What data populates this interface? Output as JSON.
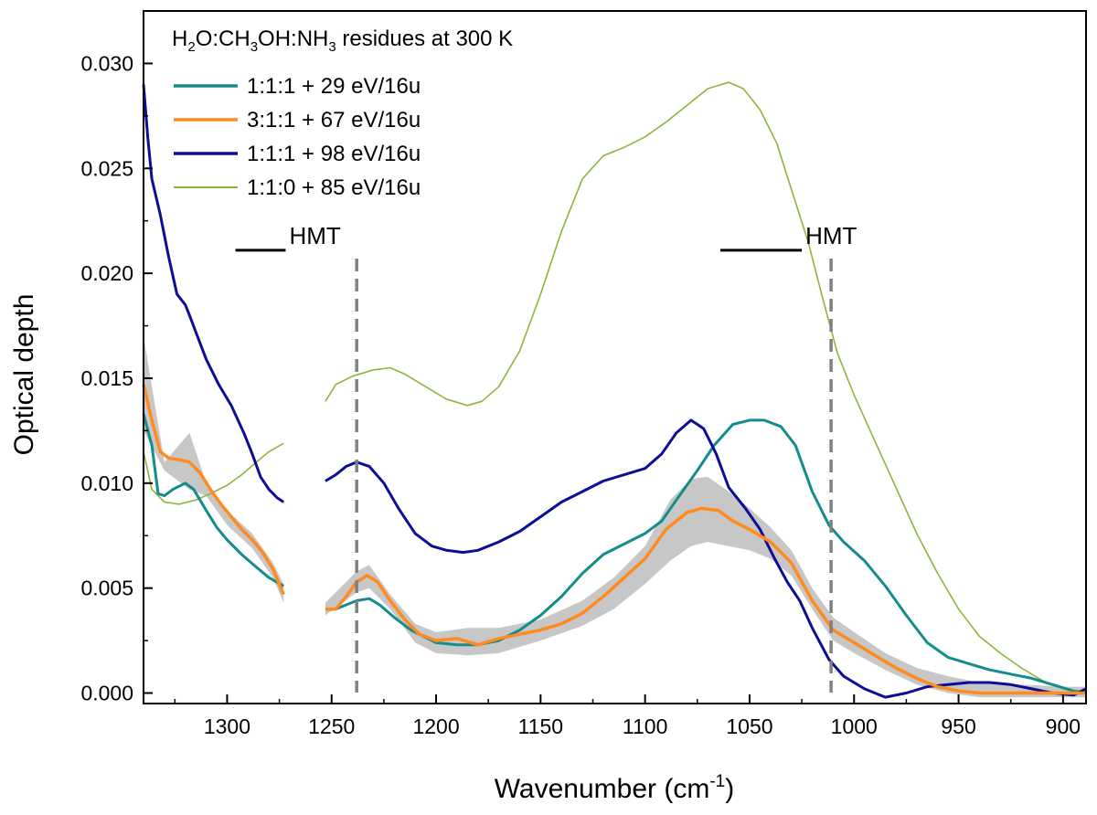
{
  "chart_data": {
    "type": "line",
    "title": "H2O:CH3OH:NH3 residues at 300 K",
    "title_parts": {
      "p1": "H",
      "s1": "2",
      "p2": "O:CH",
      "s2": "3",
      "p3": "OH:NH",
      "s3": "3",
      "p4": " residues at 300 K"
    },
    "xlabel": "Wavenumber (cm",
    "xlabel_sup": "-1",
    "xlabel_end": ")",
    "ylabel": "Optical depth",
    "xlim": [
      1340,
      889
    ],
    "ylim": [
      -0.0005,
      0.0325
    ],
    "x_reversed": true,
    "x_ticks": [
      1300,
      1250,
      1200,
      1150,
      1100,
      1050,
      1000,
      950,
      900
    ],
    "y_ticks": [
      "0.000",
      "0.005",
      "0.010",
      "0.015",
      "0.020",
      "0.025",
      "0.030"
    ],
    "legend_position": "top-left",
    "gap_range": [
      1273,
      1253
    ],
    "annotations": {
      "hmt_left": {
        "text": "HMT",
        "bar": [
          1296,
          1272
        ],
        "y": 0.0211,
        "marker_x": 1238
      },
      "hmt_right": {
        "text": "HMT",
        "bar": [
          1064,
          1025
        ],
        "y": 0.0211,
        "marker_x": 1011
      }
    },
    "series": [
      {
        "name": "1:1:1 + 29 eV/16u",
        "color": "#148c8c",
        "points": [
          [
            1340,
            0.0133
          ],
          [
            1336,
            0.0118
          ],
          [
            1333,
            0.0095
          ],
          [
            1330,
            0.0094
          ],
          [
            1326,
            0.0097
          ],
          [
            1320,
            0.01
          ],
          [
            1316,
            0.0097
          ],
          [
            1310,
            0.0087
          ],
          [
            1305,
            0.0079
          ],
          [
            1300,
            0.0073
          ],
          [
            1293,
            0.0066
          ],
          [
            1286,
            0.006
          ],
          [
            1280,
            0.0055
          ],
          [
            1273,
            0.0051
          ],
          null,
          [
            1253,
            0.004
          ],
          [
            1248,
            0.004
          ],
          [
            1243,
            0.0042
          ],
          [
            1238,
            0.0044
          ],
          [
            1232,
            0.0045
          ],
          [
            1227,
            0.0042
          ],
          [
            1220,
            0.0036
          ],
          [
            1212,
            0.003
          ],
          [
            1200,
            0.0024
          ],
          [
            1190,
            0.0023
          ],
          [
            1180,
            0.0023
          ],
          [
            1170,
            0.0025
          ],
          [
            1160,
            0.003
          ],
          [
            1150,
            0.0037
          ],
          [
            1140,
            0.0046
          ],
          [
            1130,
            0.0057
          ],
          [
            1120,
            0.0066
          ],
          [
            1110,
            0.0071
          ],
          [
            1100,
            0.0076
          ],
          [
            1092,
            0.0082
          ],
          [
            1085,
            0.0092
          ],
          [
            1075,
            0.0106
          ],
          [
            1067,
            0.0118
          ],
          [
            1058,
            0.0128
          ],
          [
            1050,
            0.013
          ],
          [
            1043,
            0.013
          ],
          [
            1035,
            0.0127
          ],
          [
            1028,
            0.0118
          ],
          [
            1020,
            0.0096
          ],
          [
            1012,
            0.008
          ],
          [
            1005,
            0.0072
          ],
          [
            995,
            0.0063
          ],
          [
            985,
            0.0051
          ],
          [
            975,
            0.0037
          ],
          [
            965,
            0.0024
          ],
          [
            955,
            0.0017
          ],
          [
            945,
            0.0014
          ],
          [
            935,
            0.0011
          ],
          [
            925,
            0.0009
          ],
          [
            915,
            0.0007
          ],
          [
            905,
            0.0004
          ],
          [
            895,
            0.0001
          ],
          [
            889,
            0.0
          ]
        ]
      },
      {
        "name": "3:1:1 + 67 eV/16u",
        "color": "#ff8a1e",
        "points": [
          [
            1340,
            0.0147
          ],
          [
            1336,
            0.013
          ],
          [
            1332,
            0.0115
          ],
          [
            1328,
            0.0112
          ],
          [
            1322,
            0.0111
          ],
          [
            1318,
            0.011
          ],
          [
            1313,
            0.0105
          ],
          [
            1308,
            0.0097
          ],
          [
            1303,
            0.009
          ],
          [
            1298,
            0.0084
          ],
          [
            1293,
            0.0078
          ],
          [
            1288,
            0.0073
          ],
          [
            1283,
            0.0067
          ],
          [
            1278,
            0.0059
          ],
          [
            1273,
            0.0047
          ],
          null,
          [
            1253,
            0.004
          ],
          [
            1248,
            0.004
          ],
          [
            1243,
            0.0046
          ],
          [
            1238,
            0.0053
          ],
          [
            1233,
            0.0056
          ],
          [
            1228,
            0.0053
          ],
          [
            1222,
            0.0044
          ],
          [
            1215,
            0.0035
          ],
          [
            1208,
            0.0028
          ],
          [
            1200,
            0.0025
          ],
          [
            1190,
            0.0026
          ],
          [
            1180,
            0.0023
          ],
          [
            1170,
            0.0026
          ],
          [
            1160,
            0.0028
          ],
          [
            1150,
            0.003
          ],
          [
            1140,
            0.0033
          ],
          [
            1130,
            0.0038
          ],
          [
            1120,
            0.0046
          ],
          [
            1110,
            0.0055
          ],
          [
            1100,
            0.0064
          ],
          [
            1090,
            0.0078
          ],
          [
            1080,
            0.0086
          ],
          [
            1073,
            0.0088
          ],
          [
            1065,
            0.0087
          ],
          [
            1058,
            0.0082
          ],
          [
            1050,
            0.0078
          ],
          [
            1040,
            0.0072
          ],
          [
            1030,
            0.0062
          ],
          [
            1020,
            0.0044
          ],
          [
            1010,
            0.003
          ],
          [
            1000,
            0.0024
          ],
          [
            990,
            0.0018
          ],
          [
            980,
            0.0012
          ],
          [
            970,
            0.0007
          ],
          [
            960,
            0.0003
          ],
          [
            950,
            0.0001
          ],
          [
            940,
            0.0
          ],
          [
            930,
            0.0
          ],
          [
            920,
            0.0
          ],
          [
            910,
            0.0
          ],
          [
            900,
            0.0
          ],
          [
            889,
            0.0
          ]
        ]
      },
      {
        "name": "1:1:1 + 98 eV/16u",
        "color": "#0d0d96",
        "points": [
          [
            1340,
            0.029
          ],
          [
            1338,
            0.0265
          ],
          [
            1336,
            0.0245
          ],
          [
            1332,
            0.0228
          ],
          [
            1328,
            0.0208
          ],
          [
            1324,
            0.019
          ],
          [
            1320,
            0.0185
          ],
          [
            1318,
            0.018
          ],
          [
            1315,
            0.0172
          ],
          [
            1310,
            0.0159
          ],
          [
            1304,
            0.0147
          ],
          [
            1298,
            0.0137
          ],
          [
            1292,
            0.0124
          ],
          [
            1288,
            0.0114
          ],
          [
            1284,
            0.0103
          ],
          [
            1280,
            0.0097
          ],
          [
            1276,
            0.0093
          ],
          [
            1273,
            0.0091
          ],
          null,
          [
            1253,
            0.0101
          ],
          [
            1248,
            0.0104
          ],
          [
            1243,
            0.0108
          ],
          [
            1238,
            0.011
          ],
          [
            1232,
            0.0108
          ],
          [
            1225,
            0.01
          ],
          [
            1218,
            0.0088
          ],
          [
            1210,
            0.0076
          ],
          [
            1202,
            0.007
          ],
          [
            1195,
            0.0068
          ],
          [
            1187,
            0.0067
          ],
          [
            1180,
            0.0068
          ],
          [
            1170,
            0.0072
          ],
          [
            1160,
            0.0077
          ],
          [
            1150,
            0.0084
          ],
          [
            1140,
            0.0091
          ],
          [
            1130,
            0.0096
          ],
          [
            1120,
            0.0101
          ],
          [
            1110,
            0.0104
          ],
          [
            1100,
            0.0107
          ],
          [
            1092,
            0.0114
          ],
          [
            1085,
            0.0124
          ],
          [
            1078,
            0.013
          ],
          [
            1072,
            0.0126
          ],
          [
            1066,
            0.0114
          ],
          [
            1060,
            0.0098
          ],
          [
            1052,
            0.0088
          ],
          [
            1045,
            0.0078
          ],
          [
            1038,
            0.0064
          ],
          [
            1032,
            0.0053
          ],
          [
            1026,
            0.0044
          ],
          [
            1020,
            0.0031
          ],
          [
            1012,
            0.0016
          ],
          [
            1005,
            0.0008
          ],
          [
            995,
            0.0002
          ],
          [
            985,
            -0.0002
          ],
          [
            975,
            0.0
          ],
          [
            965,
            0.0003
          ],
          [
            955,
            0.0004
          ],
          [
            945,
            0.0005
          ],
          [
            935,
            0.0005
          ],
          [
            925,
            0.0004
          ],
          [
            915,
            0.0002
          ],
          [
            905,
            0.0
          ],
          [
            895,
            -0.0001
          ],
          [
            889,
            0.0002
          ]
        ]
      },
      {
        "name": "1:1:0 + 85 eV/16u",
        "color": "#8db53a",
        "points": [
          [
            1340,
            0.0115
          ],
          [
            1336,
            0.0097
          ],
          [
            1330,
            0.0091
          ],
          [
            1323,
            0.009
          ],
          [
            1315,
            0.0092
          ],
          [
            1308,
            0.0095
          ],
          [
            1300,
            0.0099
          ],
          [
            1293,
            0.0104
          ],
          [
            1286,
            0.011
          ],
          [
            1280,
            0.0115
          ],
          [
            1273,
            0.0119
          ],
          null,
          [
            1253,
            0.0139
          ],
          [
            1248,
            0.0147
          ],
          [
            1240,
            0.0151
          ],
          [
            1230,
            0.0154
          ],
          [
            1222,
            0.0155
          ],
          [
            1215,
            0.0152
          ],
          [
            1205,
            0.0146
          ],
          [
            1195,
            0.014
          ],
          [
            1185,
            0.0137
          ],
          [
            1178,
            0.0139
          ],
          [
            1170,
            0.0146
          ],
          [
            1160,
            0.0163
          ],
          [
            1150,
            0.019
          ],
          [
            1140,
            0.022
          ],
          [
            1130,
            0.0245
          ],
          [
            1120,
            0.0256
          ],
          [
            1110,
            0.026
          ],
          [
            1100,
            0.0265
          ],
          [
            1090,
            0.0272
          ],
          [
            1080,
            0.028
          ],
          [
            1070,
            0.0288
          ],
          [
            1060,
            0.0291
          ],
          [
            1053,
            0.0288
          ],
          [
            1045,
            0.0278
          ],
          [
            1037,
            0.0262
          ],
          [
            1030,
            0.024
          ],
          [
            1022,
            0.0215
          ],
          [
            1015,
            0.0188
          ],
          [
            1008,
            0.0162
          ],
          [
            1000,
            0.0142
          ],
          [
            990,
            0.012
          ],
          [
            980,
            0.0098
          ],
          [
            970,
            0.0076
          ],
          [
            960,
            0.0057
          ],
          [
            950,
            0.004
          ],
          [
            940,
            0.0027
          ],
          [
            930,
            0.0019
          ],
          [
            920,
            0.0012
          ],
          [
            910,
            0.0006
          ],
          [
            900,
            0.0002
          ],
          [
            889,
            0.0
          ]
        ]
      }
    ],
    "gray_band": {
      "color": "#b4b4b4",
      "upper": [
        [
          1340,
          0.017
        ],
        [
          1330,
          0.011
        ],
        [
          1318,
          0.0124
        ],
        [
          1310,
          0.01
        ],
        [
          1300,
          0.0087
        ],
        [
          1288,
          0.0076
        ],
        [
          1278,
          0.0062
        ],
        [
          1273,
          0.0052
        ],
        null,
        [
          1253,
          0.0043
        ],
        [
          1238,
          0.0058
        ],
        [
          1232,
          0.0061
        ],
        [
          1222,
          0.0047
        ],
        [
          1210,
          0.0033
        ],
        [
          1200,
          0.0029
        ],
        [
          1185,
          0.0031
        ],
        [
          1170,
          0.0031
        ],
        [
          1150,
          0.0035
        ],
        [
          1130,
          0.0044
        ],
        [
          1115,
          0.0055
        ],
        [
          1100,
          0.007
        ],
        [
          1088,
          0.0092
        ],
        [
          1078,
          0.0102
        ],
        [
          1070,
          0.0103
        ],
        [
          1060,
          0.0096
        ],
        [
          1050,
          0.0088
        ],
        [
          1040,
          0.0079
        ],
        [
          1030,
          0.0068
        ],
        [
          1020,
          0.005
        ],
        [
          1010,
          0.0036
        ],
        [
          1000,
          0.0029
        ],
        [
          985,
          0.0019
        ],
        [
          970,
          0.0012
        ],
        [
          955,
          0.0008
        ],
        [
          940,
          0.0005
        ],
        [
          920,
          0.0004
        ],
        [
          900,
          0.0003
        ],
        [
          889,
          0.0003
        ]
      ],
      "lower": [
        [
          1340,
          0.0125
        ],
        [
          1330,
          0.0106
        ],
        [
          1318,
          0.0097
        ],
        [
          1310,
          0.0094
        ],
        [
          1300,
          0.008
        ],
        [
          1288,
          0.0069
        ],
        [
          1278,
          0.0055
        ],
        [
          1273,
          0.0043
        ],
        null,
        [
          1253,
          0.0037
        ],
        [
          1238,
          0.0048
        ],
        [
          1232,
          0.005
        ],
        [
          1222,
          0.004
        ],
        [
          1210,
          0.0024
        ],
        [
          1200,
          0.0019
        ],
        [
          1185,
          0.0018
        ],
        [
          1170,
          0.0019
        ],
        [
          1150,
          0.0025
        ],
        [
          1130,
          0.0032
        ],
        [
          1115,
          0.004
        ],
        [
          1100,
          0.0052
        ],
        [
          1088,
          0.0063
        ],
        [
          1078,
          0.007
        ],
        [
          1070,
          0.0072
        ],
        [
          1060,
          0.007
        ],
        [
          1050,
          0.0068
        ],
        [
          1040,
          0.0064
        ],
        [
          1030,
          0.0056
        ],
        [
          1020,
          0.004
        ],
        [
          1010,
          0.0025
        ],
        [
          1000,
          0.0019
        ],
        [
          985,
          0.0011
        ],
        [
          970,
          0.0004
        ],
        [
          955,
          0.0
        ],
        [
          940,
          -0.0002
        ],
        [
          920,
          -0.0002
        ],
        [
          900,
          -0.0002
        ],
        [
          889,
          -0.0002
        ]
      ]
    }
  }
}
